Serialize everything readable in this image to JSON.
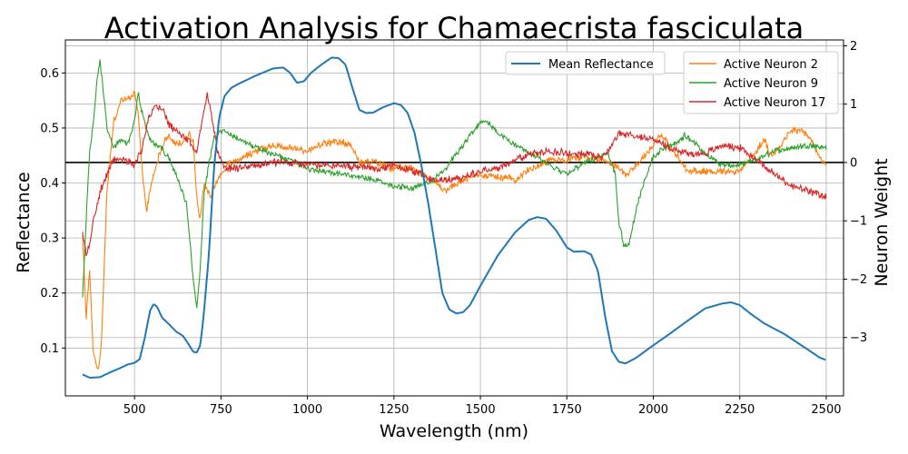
{
  "chart_data": {
    "type": "line",
    "title": "Activation Analysis for Chamaecrista fasciculata",
    "xlabel": "Wavelength (nm)",
    "ylabel": "Reflectance",
    "y2label": "Neuron Weight",
    "xlim": [
      300,
      2550
    ],
    "ylim": [
      0.013,
      0.66
    ],
    "y2lim": [
      -4.0,
      2.1
    ],
    "xticks": [
      500,
      750,
      1000,
      1250,
      1500,
      1750,
      2000,
      2250,
      2500
    ],
    "yticks": [
      0.1,
      0.2,
      0.3,
      0.4,
      0.5,
      0.6
    ],
    "y2ticks": [
      -3,
      -2,
      -1,
      0,
      1,
      2
    ],
    "grid": true,
    "zero_line_y2": 0,
    "legend_left": {
      "placement": "top-center",
      "entries": [
        "Mean Reflectance"
      ]
    },
    "legend_right": {
      "placement": "top-right",
      "entries": [
        "Active Neuron 2",
        "Active Neuron 9",
        "Active Neuron 17"
      ]
    },
    "mean_reflectance": {
      "name": "Mean Reflectance",
      "color": "#1f77b4",
      "axis": "left",
      "points": [
        [
          350,
          0.052
        ],
        [
          360,
          0.049
        ],
        [
          370,
          0.046
        ],
        [
          400,
          0.047
        ],
        [
          430,
          0.056
        ],
        [
          460,
          0.064
        ],
        [
          480,
          0.07
        ],
        [
          500,
          0.073
        ],
        [
          515,
          0.08
        ],
        [
          530,
          0.12
        ],
        [
          545,
          0.168
        ],
        [
          555,
          0.18
        ],
        [
          565,
          0.175
        ],
        [
          580,
          0.155
        ],
        [
          600,
          0.143
        ],
        [
          620,
          0.13
        ],
        [
          640,
          0.122
        ],
        [
          655,
          0.108
        ],
        [
          670,
          0.093
        ],
        [
          680,
          0.092
        ],
        [
          690,
          0.105
        ],
        [
          700,
          0.16
        ],
        [
          715,
          0.27
        ],
        [
          730,
          0.43
        ],
        [
          745,
          0.52
        ],
        [
          760,
          0.558
        ],
        [
          780,
          0.573
        ],
        [
          800,
          0.58
        ],
        [
          850,
          0.595
        ],
        [
          900,
          0.608
        ],
        [
          930,
          0.61
        ],
        [
          950,
          0.6
        ],
        [
          970,
          0.582
        ],
        [
          990,
          0.585
        ],
        [
          1010,
          0.6
        ],
        [
          1040,
          0.615
        ],
        [
          1070,
          0.628
        ],
        [
          1090,
          0.627
        ],
        [
          1110,
          0.615
        ],
        [
          1130,
          0.573
        ],
        [
          1150,
          0.533
        ],
        [
          1170,
          0.527
        ],
        [
          1190,
          0.528
        ],
        [
          1220,
          0.538
        ],
        [
          1250,
          0.545
        ],
        [
          1270,
          0.542
        ],
        [
          1290,
          0.527
        ],
        [
          1310,
          0.49
        ],
        [
          1330,
          0.43
        ],
        [
          1350,
          0.36
        ],
        [
          1370,
          0.28
        ],
        [
          1390,
          0.2
        ],
        [
          1410,
          0.17
        ],
        [
          1430,
          0.163
        ],
        [
          1450,
          0.165
        ],
        [
          1470,
          0.178
        ],
        [
          1500,
          0.213
        ],
        [
          1550,
          0.268
        ],
        [
          1600,
          0.31
        ],
        [
          1640,
          0.333
        ],
        [
          1665,
          0.338
        ],
        [
          1690,
          0.335
        ],
        [
          1720,
          0.313
        ],
        [
          1750,
          0.283
        ],
        [
          1770,
          0.275
        ],
        [
          1800,
          0.276
        ],
        [
          1820,
          0.27
        ],
        [
          1840,
          0.24
        ],
        [
          1860,
          0.16
        ],
        [
          1880,
          0.095
        ],
        [
          1900,
          0.075
        ],
        [
          1920,
          0.072
        ],
        [
          1950,
          0.082
        ],
        [
          2000,
          0.105
        ],
        [
          2050,
          0.127
        ],
        [
          2100,
          0.15
        ],
        [
          2150,
          0.172
        ],
        [
          2200,
          0.181
        ],
        [
          2225,
          0.183
        ],
        [
          2250,
          0.178
        ],
        [
          2280,
          0.163
        ],
        [
          2320,
          0.145
        ],
        [
          2380,
          0.125
        ],
        [
          2440,
          0.1
        ],
        [
          2480,
          0.083
        ],
        [
          2500,
          0.078
        ]
      ]
    },
    "series": [
      {
        "name": "Active Neuron 2",
        "color": "#ff7f0e",
        "axis": "right",
        "noise": 0.05,
        "points": [
          [
            350,
            -1.2
          ],
          [
            360,
            -2.7
          ],
          [
            370,
            -1.8
          ],
          [
            380,
            -3.2
          ],
          [
            395,
            -3.6
          ],
          [
            405,
            -3.0
          ],
          [
            420,
            -0.5
          ],
          [
            440,
            0.7
          ],
          [
            460,
            1.05
          ],
          [
            480,
            1.1
          ],
          [
            500,
            1.15
          ],
          [
            510,
            0.9
          ],
          [
            520,
            0.0
          ],
          [
            535,
            -0.85
          ],
          [
            550,
            -0.3
          ],
          [
            570,
            0.1
          ],
          [
            585,
            0.35
          ],
          [
            600,
            0.45
          ],
          [
            620,
            0.3
          ],
          [
            640,
            0.35
          ],
          [
            660,
            0.5
          ],
          [
            670,
            0.35
          ],
          [
            680,
            -0.6
          ],
          [
            690,
            -0.95
          ],
          [
            700,
            -0.4
          ],
          [
            720,
            -0.55
          ],
          [
            740,
            -0.3
          ],
          [
            760,
            -0.1
          ],
          [
            780,
            0.0
          ],
          [
            800,
            0.05
          ],
          [
            850,
            0.2
          ],
          [
            900,
            0.3
          ],
          [
            950,
            0.25
          ],
          [
            1000,
            0.2
          ],
          [
            1050,
            0.32
          ],
          [
            1100,
            0.35
          ],
          [
            1130,
            0.28
          ],
          [
            1150,
            0.0
          ],
          [
            1200,
            0.0
          ],
          [
            1250,
            -0.1
          ],
          [
            1300,
            -0.1
          ],
          [
            1350,
            -0.25
          ],
          [
            1400,
            -0.48
          ],
          [
            1450,
            -0.3
          ],
          [
            1500,
            -0.2
          ],
          [
            1550,
            -0.25
          ],
          [
            1600,
            -0.28
          ],
          [
            1650,
            -0.1
          ],
          [
            1700,
            0.05
          ],
          [
            1750,
            0.05
          ],
          [
            1800,
            0.1
          ],
          [
            1850,
            0.05
          ],
          [
            1880,
            0.0
          ],
          [
            1920,
            -0.2
          ],
          [
            1950,
            -0.05
          ],
          [
            1980,
            0.15
          ],
          [
            2000,
            0.3
          ],
          [
            2020,
            0.5
          ],
          [
            2050,
            0.25
          ],
          [
            2100,
            -0.15
          ],
          [
            2150,
            -0.15
          ],
          [
            2200,
            -0.15
          ],
          [
            2250,
            -0.15
          ],
          [
            2270,
            0.0
          ],
          [
            2300,
            0.2
          ],
          [
            2320,
            0.4
          ],
          [
            2340,
            0.1
          ],
          [
            2360,
            0.25
          ],
          [
            2400,
            0.55
          ],
          [
            2430,
            0.55
          ],
          [
            2460,
            0.35
          ],
          [
            2480,
            0.1
          ],
          [
            2500,
            -0.05
          ]
        ]
      },
      {
        "name": "Active Neuron 9",
        "color": "#2ca02c",
        "axis": "right",
        "noise": 0.04,
        "points": [
          [
            350,
            -2.3
          ],
          [
            360,
            -1.0
          ],
          [
            370,
            0.2
          ],
          [
            380,
            0.6
          ],
          [
            390,
            1.35
          ],
          [
            400,
            1.75
          ],
          [
            410,
            1.2
          ],
          [
            420,
            0.6
          ],
          [
            440,
            0.25
          ],
          [
            460,
            0.4
          ],
          [
            480,
            0.3
          ],
          [
            500,
            0.7
          ],
          [
            510,
            1.2
          ],
          [
            520,
            0.9
          ],
          [
            540,
            0.45
          ],
          [
            560,
            0.3
          ],
          [
            580,
            0.25
          ],
          [
            600,
            0.05
          ],
          [
            620,
            -0.2
          ],
          [
            650,
            -0.7
          ],
          [
            670,
            -2.0
          ],
          [
            680,
            -2.5
          ],
          [
            690,
            -1.8
          ],
          [
            700,
            -0.6
          ],
          [
            715,
            0.0
          ],
          [
            730,
            0.4
          ],
          [
            750,
            0.55
          ],
          [
            770,
            0.5
          ],
          [
            800,
            0.4
          ],
          [
            850,
            0.25
          ],
          [
            900,
            0.15
          ],
          [
            950,
            0.05
          ],
          [
            1000,
            -0.1
          ],
          [
            1050,
            -0.15
          ],
          [
            1100,
            -0.2
          ],
          [
            1150,
            -0.25
          ],
          [
            1200,
            -0.3
          ],
          [
            1250,
            -0.4
          ],
          [
            1300,
            -0.45
          ],
          [
            1350,
            -0.35
          ],
          [
            1400,
            -0.1
          ],
          [
            1450,
            0.3
          ],
          [
            1500,
            0.7
          ],
          [
            1520,
            0.7
          ],
          [
            1550,
            0.5
          ],
          [
            1600,
            0.3
          ],
          [
            1650,
            0.15
          ],
          [
            1700,
            -0.05
          ],
          [
            1750,
            -0.2
          ],
          [
            1800,
            0.0
          ],
          [
            1850,
            0.1
          ],
          [
            1870,
            0.15
          ],
          [
            1890,
            -0.2
          ],
          [
            1900,
            -1.0
          ],
          [
            1915,
            -1.45
          ],
          [
            1930,
            -1.4
          ],
          [
            1950,
            -0.8
          ],
          [
            1975,
            -0.3
          ],
          [
            2000,
            0.1
          ],
          [
            2030,
            0.25
          ],
          [
            2060,
            0.3
          ],
          [
            2090,
            0.45
          ],
          [
            2120,
            0.35
          ],
          [
            2150,
            0.15
          ],
          [
            2200,
            -0.05
          ],
          [
            2250,
            -0.05
          ],
          [
            2300,
            0.05
          ],
          [
            2350,
            0.2
          ],
          [
            2400,
            0.25
          ],
          [
            2450,
            0.3
          ],
          [
            2500,
            0.25
          ]
        ]
      },
      {
        "name": "Active Neuron 17",
        "color": "#d62728",
        "axis": "right",
        "noise": 0.05,
        "points": [
          [
            350,
            -1.2
          ],
          [
            360,
            -1.6
          ],
          [
            370,
            -1.4
          ],
          [
            380,
            -1.0
          ],
          [
            390,
            -0.8
          ],
          [
            400,
            -0.5
          ],
          [
            420,
            -0.2
          ],
          [
            440,
            0.05
          ],
          [
            470,
            0.05
          ],
          [
            500,
            -0.05
          ],
          [
            520,
            0.2
          ],
          [
            540,
            0.75
          ],
          [
            560,
            0.95
          ],
          [
            580,
            0.9
          ],
          [
            600,
            0.65
          ],
          [
            620,
            0.55
          ],
          [
            640,
            0.45
          ],
          [
            660,
            0.35
          ],
          [
            680,
            0.15
          ],
          [
            700,
            0.85
          ],
          [
            710,
            1.2
          ],
          [
            720,
            0.9
          ],
          [
            740,
            0.2
          ],
          [
            760,
            -0.1
          ],
          [
            800,
            -0.1
          ],
          [
            850,
            -0.05
          ],
          [
            900,
            0.0
          ],
          [
            950,
            0.0
          ],
          [
            1000,
            -0.05
          ],
          [
            1100,
            -0.05
          ],
          [
            1200,
            -0.1
          ],
          [
            1250,
            -0.05
          ],
          [
            1300,
            -0.15
          ],
          [
            1350,
            -0.25
          ],
          [
            1400,
            -0.3
          ],
          [
            1450,
            -0.25
          ],
          [
            1500,
            -0.15
          ],
          [
            1550,
            -0.1
          ],
          [
            1600,
            0.05
          ],
          [
            1650,
            0.15
          ],
          [
            1700,
            0.2
          ],
          [
            1750,
            0.15
          ],
          [
            1800,
            0.15
          ],
          [
            1850,
            0.1
          ],
          [
            1870,
            0.2
          ],
          [
            1900,
            0.5
          ],
          [
            1950,
            0.45
          ],
          [
            2000,
            0.4
          ],
          [
            2050,
            0.25
          ],
          [
            2100,
            0.15
          ],
          [
            2150,
            0.15
          ],
          [
            2200,
            0.3
          ],
          [
            2250,
            0.25
          ],
          [
            2300,
            0.05
          ],
          [
            2350,
            -0.2
          ],
          [
            2400,
            -0.4
          ],
          [
            2450,
            -0.5
          ],
          [
            2500,
            -0.6
          ]
        ]
      }
    ]
  }
}
